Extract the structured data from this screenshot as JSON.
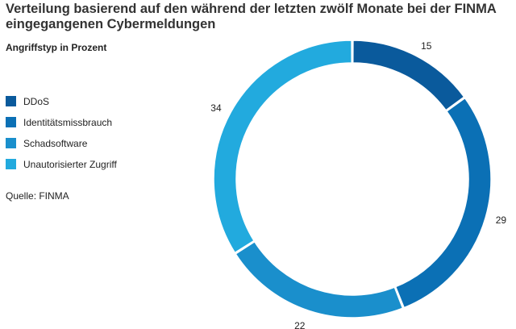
{
  "chart_data": {
    "type": "pie",
    "donut": true,
    "title": "Verteilung basierend auf den während der letzten zwölf Monate bei der FINMA eingegangenen Cybermeldungen",
    "subtitle": "Angriffstyp in Prozent",
    "source": "Quelle: FINMA",
    "legend_position": "left",
    "slices": [
      {
        "label": "DDoS",
        "value": 15,
        "color": "#0a5a9c"
      },
      {
        "label": "Identitätsmissbrauch",
        "value": 29,
        "color": "#0b70b5"
      },
      {
        "label": "Schadsoftware",
        "value": 22,
        "color": "#1a8fcc"
      },
      {
        "label": "Unautorisierter Zugriff",
        "value": 34,
        "color": "#22aade"
      }
    ]
  }
}
